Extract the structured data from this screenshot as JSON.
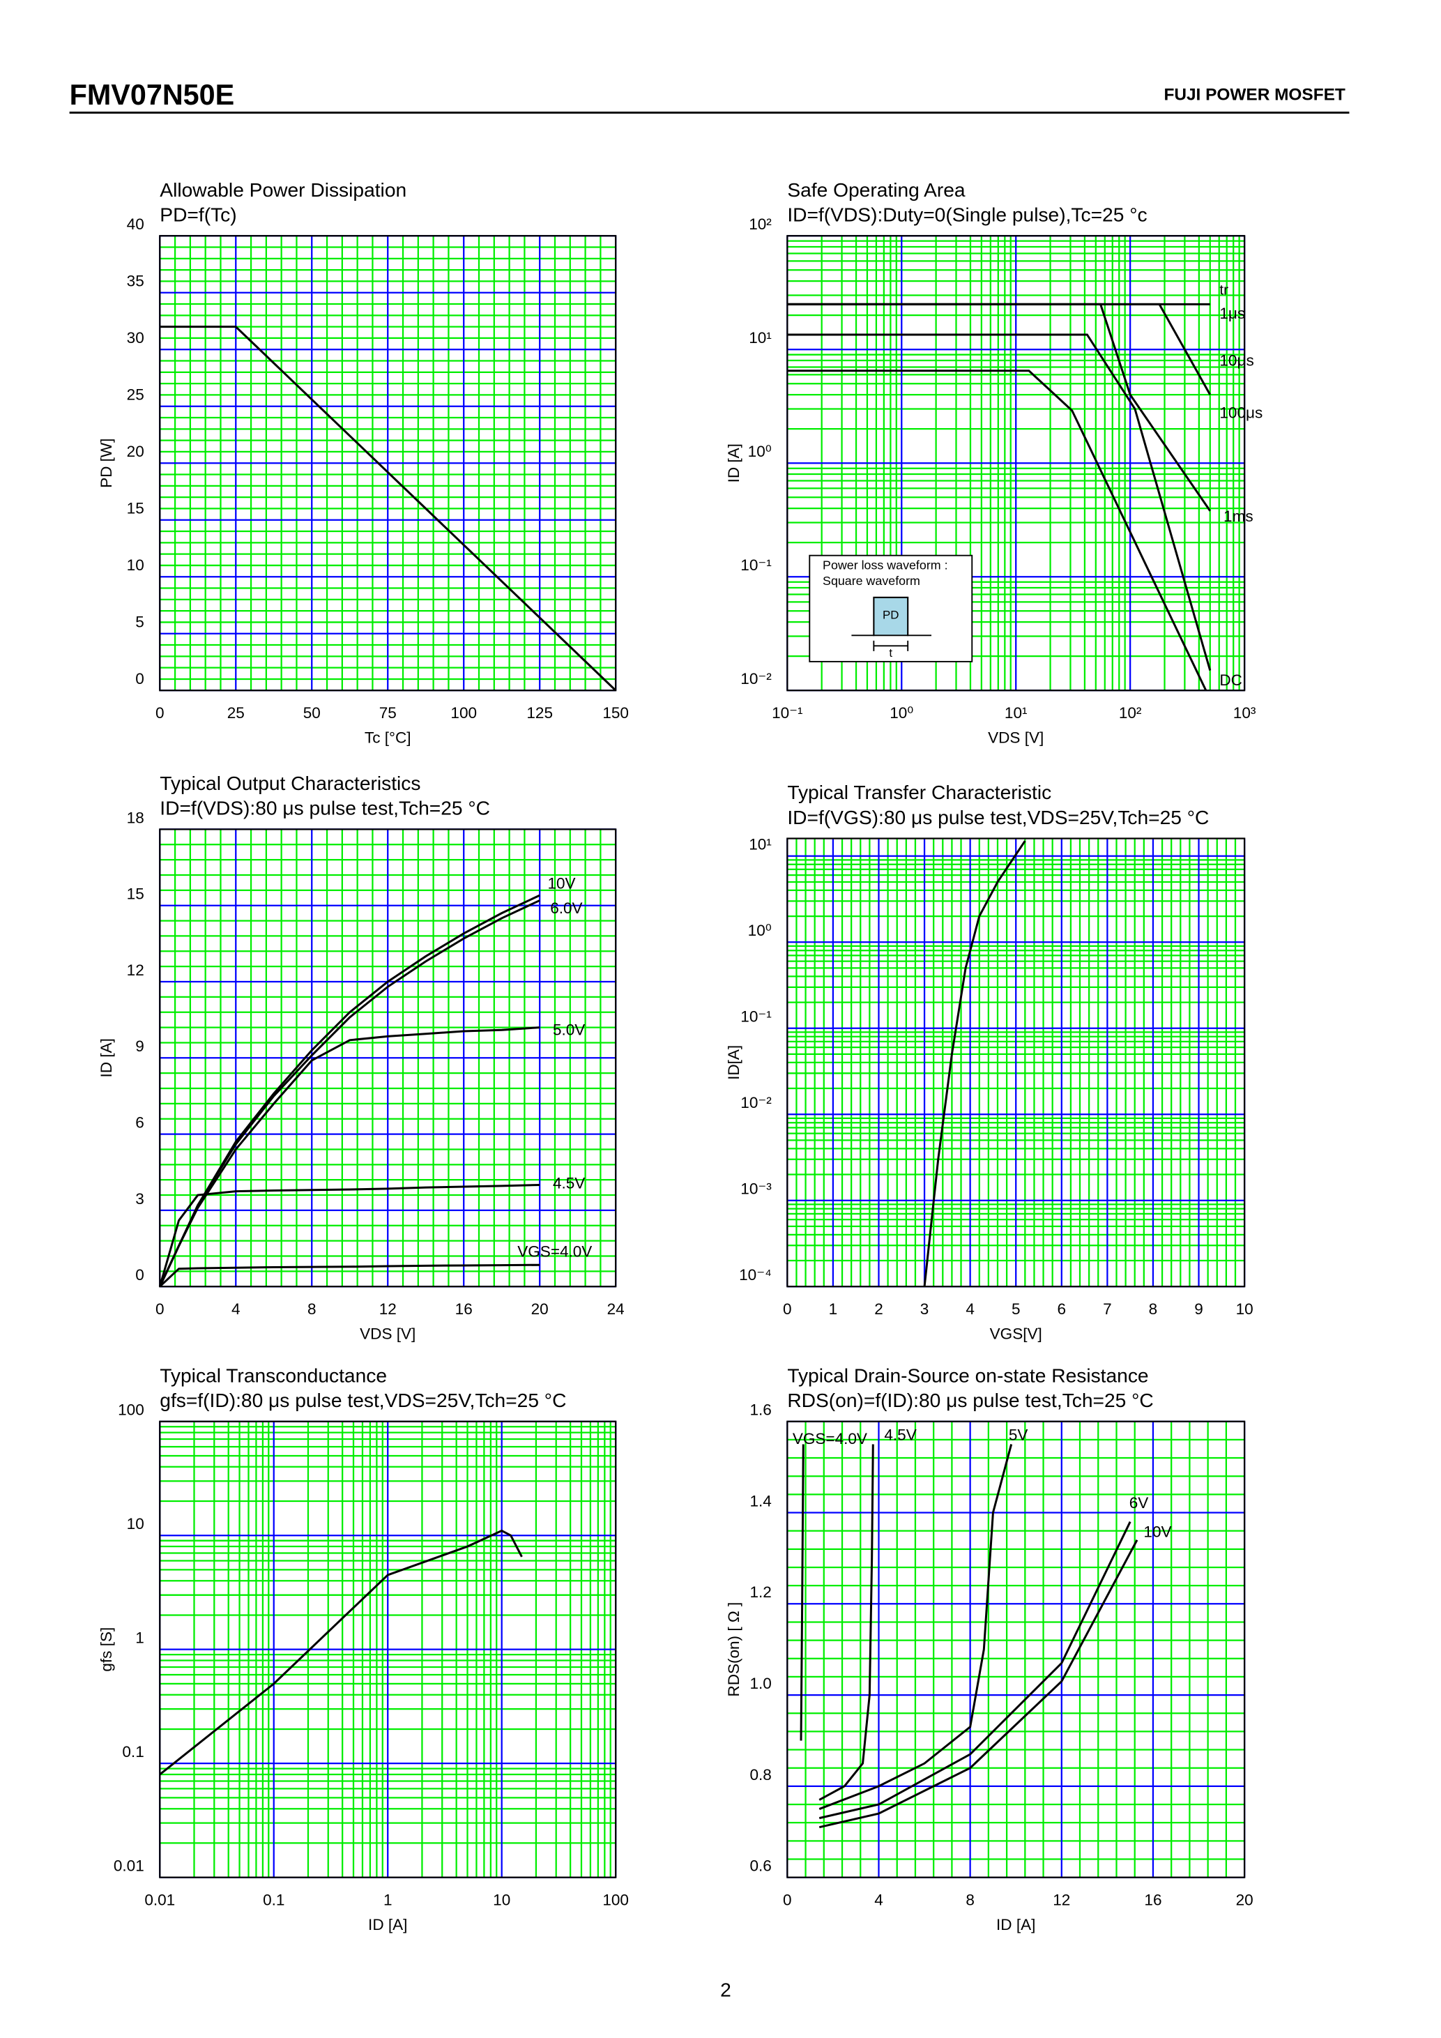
{
  "header": {
    "title": "FMV07N50E",
    "brand": "FUJI POWER MOSFET"
  },
  "page_number": "2",
  "chart_data": [
    {
      "type": "line",
      "title": "Allowable Power Dissipation",
      "subtitle": "PD=f(Tc)",
      "x_label": "Tc [°C]",
      "y_label": "PD [W]",
      "log_x": false,
      "log_y": false,
      "grid": true,
      "grid_major_color": "#0000ff",
      "grid_minor_color": "#00ee00",
      "xlim": [
        0,
        150
      ],
      "ylim": [
        0,
        40
      ],
      "xticks": [
        0,
        25,
        50,
        75,
        100,
        125,
        150
      ],
      "yticks": [
        0,
        5,
        10,
        15,
        20,
        25,
        30,
        35,
        40
      ],
      "series": [
        {
          "name": null,
          "color": "#000000",
          "x": [
            0,
            25,
            150
          ],
          "values": [
            32,
            32,
            0
          ]
        }
      ]
    },
    {
      "type": "line",
      "title": "Safe Operating Area",
      "subtitle": "ID=f(VDS):Duty=0(Single pulse),Tc=25 °c",
      "x_label": "VDS [V]",
      "y_label": "ID [A]",
      "log_x": true,
      "log_y": true,
      "grid": true,
      "grid_major_color": "#0000ff",
      "grid_minor_color": "#00ee00",
      "xlim": [
        0.1,
        1000
      ],
      "ylim": [
        0.01,
        100
      ],
      "xticks": [
        {
          "value": 0.1,
          "label": "10⁻¹"
        },
        {
          "value": 1,
          "label": "10⁰"
        },
        {
          "value": 10,
          "label": "10¹"
        },
        {
          "value": 100,
          "label": "10²"
        },
        {
          "value": 1000,
          "label": "10³"
        }
      ],
      "yticks": [
        {
          "value": 0.01,
          "label": "10⁻²"
        },
        {
          "value": 0.1,
          "label": "10⁻¹"
        },
        {
          "value": 1,
          "label": "10⁰"
        },
        {
          "value": 10,
          "label": "10¹"
        },
        {
          "value": 100,
          "label": "10²"
        }
      ],
      "annotation": "tr",
      "inset": {
        "lines": [
          "Power loss waveform :",
          "Square waveform"
        ],
        "pulse_label": "PD",
        "width_label": "t"
      },
      "series": [
        {
          "name": "1μs",
          "color": "#000000",
          "x": [
            0.1,
            500
          ],
          "values": [
            25,
            25
          ]
        },
        {
          "name": "10μs",
          "color": "#000000",
          "x": [
            0.1,
            180,
            500
          ],
          "values": [
            25,
            25,
            4
          ]
        },
        {
          "name": "100μs",
          "color": "#000000",
          "x": [
            0.1,
            55,
            100,
            500
          ],
          "values": [
            25,
            25,
            4,
            0.38
          ]
        },
        {
          "name": "1ms",
          "color": "#000000",
          "x": [
            0.1,
            42,
            110,
            500
          ],
          "values": [
            13.5,
            13.5,
            3,
            0.015
          ]
        },
        {
          "name": "DC",
          "color": "#000000",
          "x": [
            0.1,
            13,
            31,
            460
          ],
          "values": [
            6.5,
            6.5,
            2.9,
            0.01
          ]
        }
      ]
    },
    {
      "type": "line",
      "title": "Typical Output Characteristics",
      "subtitle": "ID=f(VDS):80 μs pulse test,Tch=25 °C",
      "x_label": "VDS [V]",
      "y_label": "ID [A]",
      "log_x": false,
      "log_y": false,
      "grid": true,
      "grid_major_color": "#0000ff",
      "grid_minor_color": "#00ee00",
      "xlim": [
        0,
        24
      ],
      "ylim": [
        0,
        18
      ],
      "xticks": [
        0,
        4,
        8,
        12,
        16,
        20,
        24
      ],
      "yticks": [
        0,
        3,
        6,
        9,
        12,
        15,
        18
      ],
      "x": [
        0,
        1,
        2,
        4,
        6,
        8,
        10,
        12,
        14,
        16,
        18,
        20
      ],
      "series": [
        {
          "name": "10V",
          "color": "#000000",
          "values": [
            0,
            1.6,
            3.2,
            5.7,
            7.6,
            9.3,
            10.8,
            12,
            13,
            13.9,
            14.7,
            15.4
          ]
        },
        {
          "name": "6.0V",
          "color": "#000000",
          "values": [
            0,
            1.6,
            3.2,
            5.6,
            7.5,
            9.1,
            10.6,
            11.8,
            12.8,
            13.7,
            14.5,
            15.2
          ]
        },
        {
          "name": "5.0V",
          "color": "#000000",
          "values": [
            0,
            1.6,
            3.1,
            5.4,
            7.2,
            8.9,
            9.7,
            9.85,
            9.95,
            10.05,
            10.1,
            10.2
          ]
        },
        {
          "name": "4.5V",
          "color": "#000000",
          "values": [
            0,
            2.6,
            3.6,
            3.75,
            3.78,
            3.8,
            3.82,
            3.85,
            3.9,
            3.93,
            3.96,
            4
          ]
        },
        {
          "name": "VGS=4.0V",
          "color": "#000000",
          "values": [
            0,
            0.7,
            0.72,
            0.74,
            0.76,
            0.77,
            0.78,
            0.8,
            0.82,
            0.83,
            0.84,
            0.85
          ]
        }
      ]
    },
    {
      "type": "line",
      "title": "Typical Transfer Characteristic",
      "subtitle": "ID=f(VGS):80 μs pulse test,VDS=25V,Tch=25 °C",
      "x_label": "VGS[V]",
      "y_label": "ID[A]",
      "log_x": false,
      "log_y": true,
      "grid": true,
      "grid_major_color": "#0000ff",
      "grid_minor_color": "#00ee00",
      "xlim": [
        0,
        10
      ],
      "ylim": [
        0.0001,
        16
      ],
      "xticks": [
        0,
        1,
        2,
        3,
        4,
        5,
        6,
        7,
        8,
        9,
        10
      ],
      "yticks": [
        {
          "value": 0.0001,
          "label": "10⁻⁴"
        },
        {
          "value": 0.001,
          "label": "10⁻³"
        },
        {
          "value": 0.01,
          "label": "10⁻²"
        },
        {
          "value": 0.1,
          "label": "10⁻¹"
        },
        {
          "value": 1,
          "label": "10⁰"
        },
        {
          "value": 10,
          "label": "10¹"
        }
      ],
      "series": [
        {
          "name": null,
          "color": "#000000",
          "x": [
            3,
            3.3,
            3.6,
            3.9,
            4.2,
            4.6,
            5.2
          ],
          "values": [
            0.0001,
            0.003,
            0.05,
            0.5,
            2,
            5,
            15
          ]
        }
      ]
    },
    {
      "type": "line",
      "title": "Typical Transconductance",
      "subtitle": "gfs=f(ID):80 μs pulse test,VDS=25V,Tch=25 °C",
      "x_label": "ID [A]",
      "y_label": "gfs [S]",
      "log_x": true,
      "log_y": true,
      "grid": true,
      "grid_major_color": "#0000ff",
      "grid_minor_color": "#00ee00",
      "xlim": [
        0.01,
        100
      ],
      "ylim": [
        0.01,
        100
      ],
      "xticks": [
        0.01,
        0.1,
        1,
        10,
        100
      ],
      "yticks": [
        0.01,
        0.1,
        1,
        10,
        100
      ],
      "series": [
        {
          "name": null,
          "color": "#000000",
          "x": [
            0.01,
            0.1,
            1,
            5,
            10,
            12,
            15
          ],
          "values": [
            0.08,
            0.5,
            4.5,
            8,
            11,
            10,
            6.5
          ]
        }
      ]
    },
    {
      "type": "line",
      "title": "Typical Drain-Source on-state Resistance",
      "subtitle": "RDS(on)=f(ID):80  μs pulse test,Tch=25 °C",
      "x_label": "ID [A]",
      "y_label": "RDS(on) [ Ω ]",
      "log_x": false,
      "log_y": false,
      "grid": true,
      "grid_major_color": "#0000ff",
      "grid_minor_color": "#00ee00",
      "xlim": [
        0,
        20
      ],
      "ylim": [
        0.6,
        1.6
      ],
      "xticks": [
        0,
        4,
        8,
        12,
        16,
        20
      ],
      "yticks": [
        0.6,
        0.8,
        {
          "value": 1,
          "label": "1.0"
        },
        1.2,
        1.4,
        1.6
      ],
      "series": [
        {
          "name": "VGS=4.0V",
          "color": "#000000",
          "x": [
            0.6,
            0.65,
            0.7
          ],
          "values": [
            0.9,
            1.2,
            1.55
          ]
        },
        {
          "name": "4.5V",
          "color": "#000000",
          "x": [
            1.4,
            2.5,
            3.3,
            3.6,
            3.7,
            3.75
          ],
          "values": [
            0.77,
            0.8,
            0.85,
            1,
            1.3,
            1.55
          ]
        },
        {
          "name": "5V",
          "color": "#000000",
          "x": [
            1.4,
            4,
            6,
            8,
            8.6,
            9,
            9.8
          ],
          "values": [
            0.75,
            0.8,
            0.85,
            0.93,
            1.1,
            1.4,
            1.55
          ]
        },
        {
          "name": "6V",
          "color": "#000000",
          "x": [
            1.4,
            4,
            8,
            12,
            15
          ],
          "values": [
            0.73,
            0.76,
            0.87,
            1.07,
            1.38
          ]
        },
        {
          "name": "10V",
          "color": "#000000",
          "x": [
            1.4,
            4,
            8,
            12,
            15.3
          ],
          "values": [
            0.71,
            0.74,
            0.84,
            1.03,
            1.34
          ]
        }
      ]
    }
  ]
}
